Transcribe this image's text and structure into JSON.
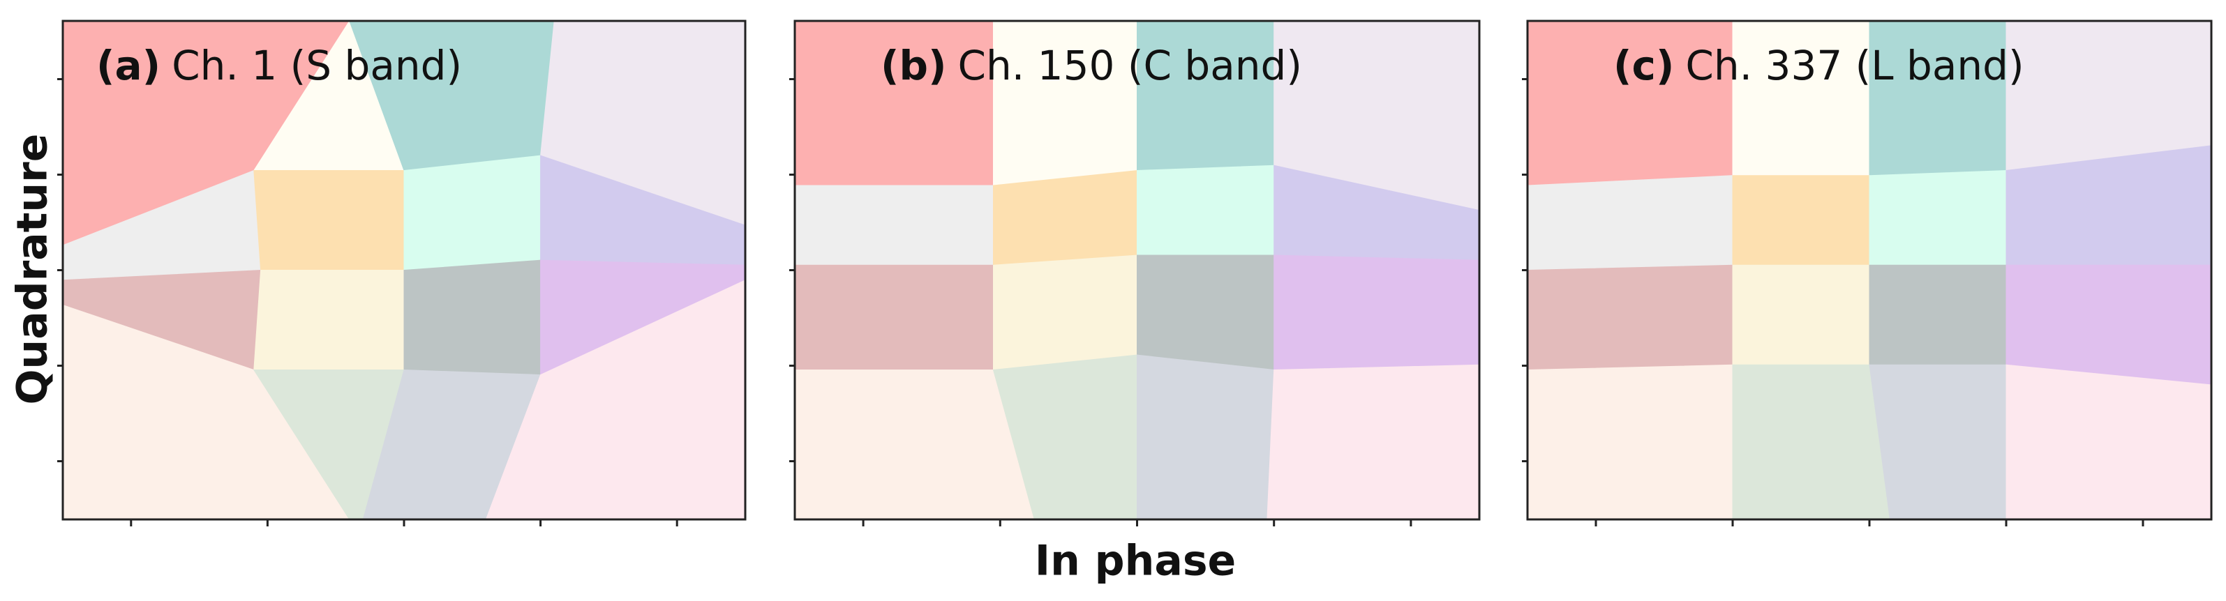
{
  "panels": [
    {
      "tag": "(a)",
      "label": "Ch. 1 (S band)"
    },
    {
      "tag": "(b)",
      "label": "Ch. 150 (C band)"
    },
    {
      "tag": "(c)",
      "label": "Ch. 337 (L band)"
    }
  ],
  "x_label": "In phase",
  "y_label": "Quadrature"
}
